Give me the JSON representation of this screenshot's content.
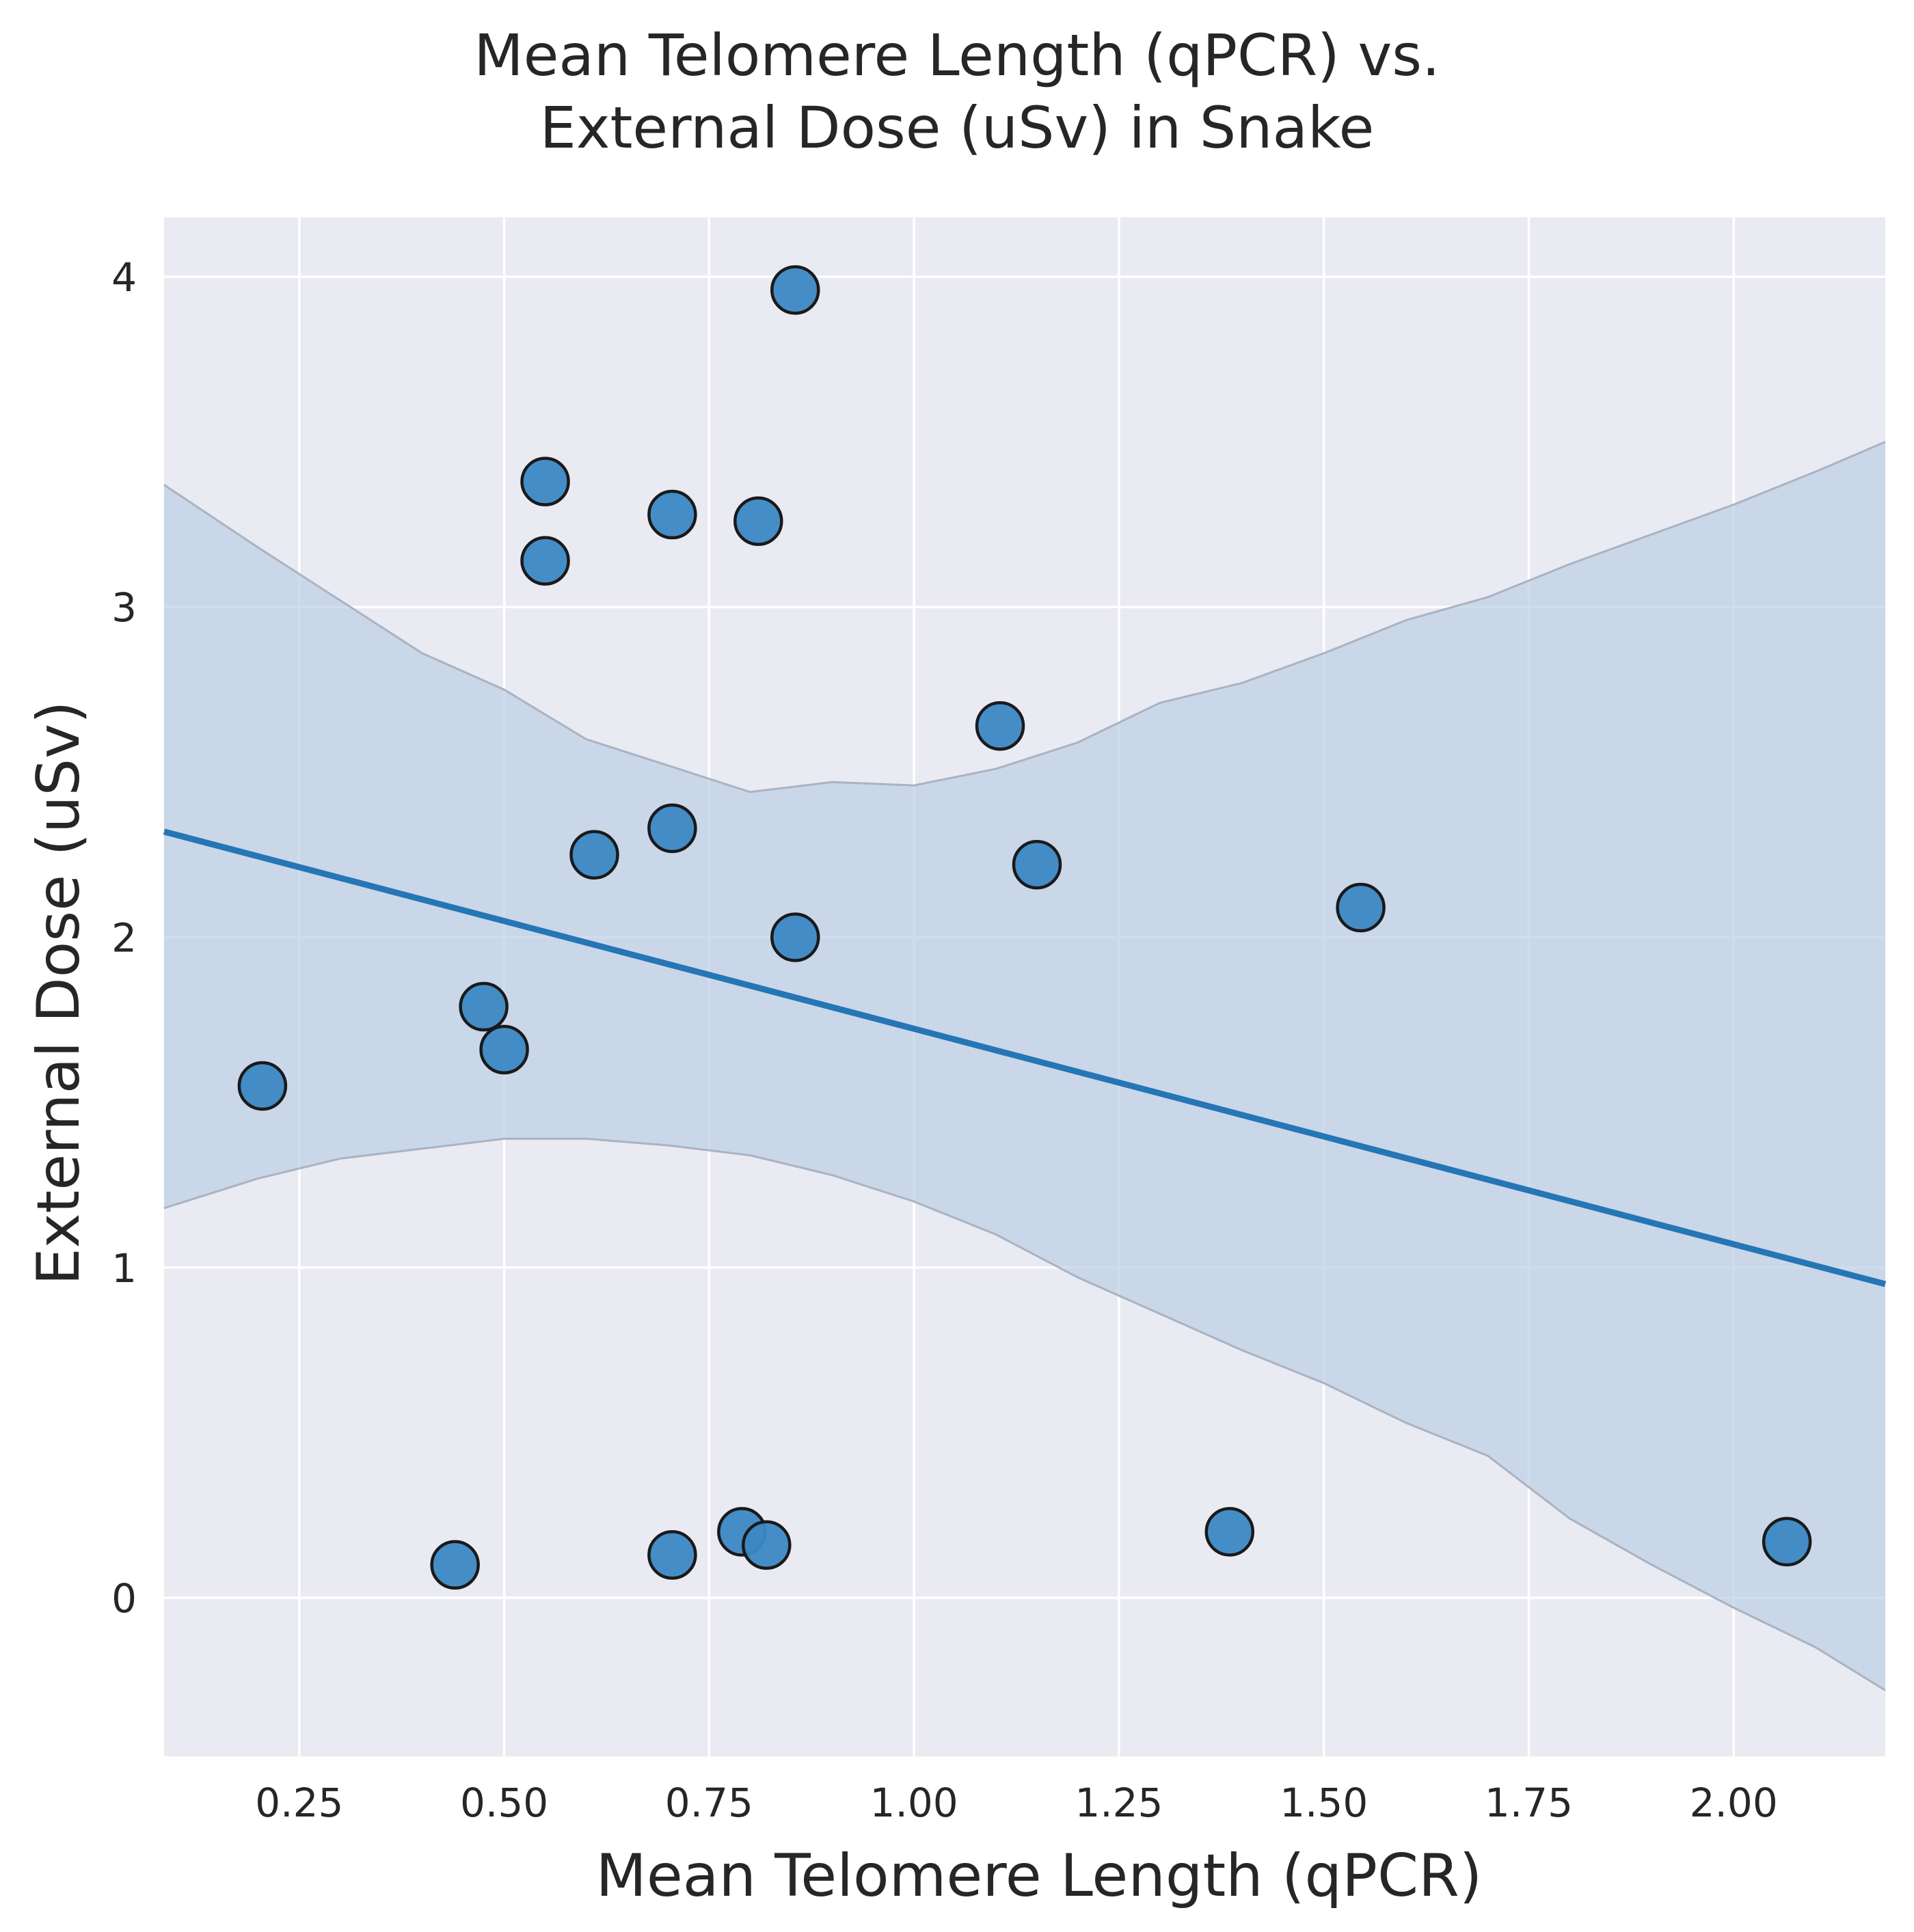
{
  "chart_data": {
    "type": "scatter",
    "title_lines": [
      "Mean Telomere Length (qPCR) vs.",
      "External Dose (uSv) in Snake"
    ],
    "xlabel": "Mean Telomere Length (qPCR)",
    "ylabel": "External Dose (uSv)",
    "xlim": [
      0.085,
      2.185
    ],
    "ylim": [
      -0.48,
      4.18
    ],
    "x_ticks": [
      0.25,
      0.5,
      0.75,
      1.0,
      1.25,
      1.5,
      1.75,
      2.0
    ],
    "x_tick_labels": [
      "0.25",
      "0.50",
      "0.75",
      "1.00",
      "1.25",
      "1.50",
      "1.75",
      "2.00"
    ],
    "y_ticks": [
      0,
      1,
      2,
      3,
      4
    ],
    "y_tick_labels": [
      "0",
      "1",
      "2",
      "3",
      "4"
    ],
    "grid": true,
    "style": "seaborn darkgrid",
    "colors": {
      "background": "#eaeaf2",
      "grid": "#ffffff",
      "points": "#3c88c4",
      "point_edge": "#1a1a1a",
      "line": "#2576b5",
      "ci_fill": "#bcd0e5",
      "ci_edge": "#a9b3c2"
    },
    "points": [
      {
        "x": 0.205,
        "y": 1.55
      },
      {
        "x": 0.44,
        "y": 0.1
      },
      {
        "x": 0.475,
        "y": 1.79
      },
      {
        "x": 0.5,
        "y": 1.66
      },
      {
        "x": 0.55,
        "y": 3.38
      },
      {
        "x": 0.55,
        "y": 3.14
      },
      {
        "x": 0.61,
        "y": 2.25
      },
      {
        "x": 0.705,
        "y": 3.28
      },
      {
        "x": 0.705,
        "y": 2.33
      },
      {
        "x": 0.705,
        "y": 0.13
      },
      {
        "x": 0.79,
        "y": 0.2
      },
      {
        "x": 0.81,
        "y": 3.26
      },
      {
        "x": 0.82,
        "y": 0.16
      },
      {
        "x": 0.855,
        "y": 3.96
      },
      {
        "x": 0.855,
        "y": 2.0
      },
      {
        "x": 1.105,
        "y": 2.64
      },
      {
        "x": 1.15,
        "y": 2.22
      },
      {
        "x": 1.385,
        "y": 0.2
      },
      {
        "x": 1.545,
        "y": 2.09
      },
      {
        "x": 2.065,
        "y": 0.17
      }
    ],
    "regression_line": {
      "x": [
        0.085,
        2.185
      ],
      "y": [
        2.32,
        0.95
      ]
    },
    "confidence_band": {
      "x": [
        0.085,
        0.2,
        0.3,
        0.4,
        0.5,
        0.6,
        0.7,
        0.8,
        0.9,
        1.0,
        1.1,
        1.2,
        1.3,
        1.4,
        1.5,
        1.6,
        1.7,
        1.8,
        1.9,
        2.0,
        2.1,
        2.185
      ],
      "upper": [
        3.37,
        3.18,
        3.02,
        2.86,
        2.75,
        2.6,
        2.52,
        2.44,
        2.47,
        2.46,
        2.51,
        2.59,
        2.71,
        2.77,
        2.86,
        2.96,
        3.03,
        3.13,
        3.22,
        3.31,
        3.41,
        3.5
      ],
      "lower": [
        1.18,
        1.27,
        1.33,
        1.36,
        1.39,
        1.39,
        1.37,
        1.34,
        1.28,
        1.2,
        1.1,
        0.97,
        0.86,
        0.75,
        0.65,
        0.53,
        0.43,
        0.24,
        0.1,
        -0.03,
        -0.15,
        -0.28
      ]
    }
  }
}
